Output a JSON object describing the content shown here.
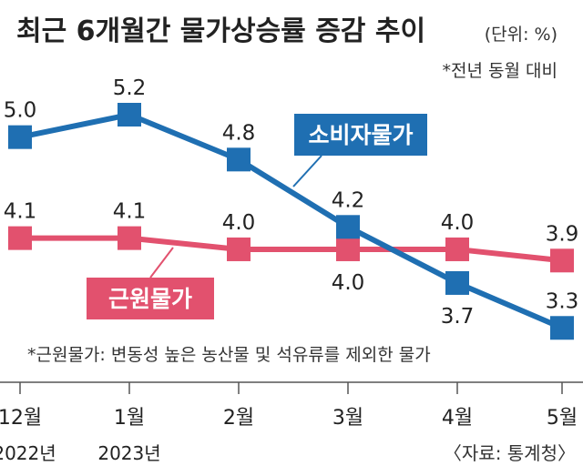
{
  "chart_data": {
    "type": "line",
    "title": "최근 6개월간 물가상승률 증감 추이",
    "unit": "(단위: %)",
    "subtitle": "*전년 동월 대비",
    "categories": [
      "12월",
      "1월",
      "2월",
      "3월",
      "4월",
      "5월"
    ],
    "category_years": [
      "2022년",
      "2023년",
      "",
      "",
      "",
      ""
    ],
    "ylim": [
      3.0,
      5.5
    ],
    "grid": false,
    "series": [
      {
        "name": "소비자물가",
        "values": [
          5.0,
          5.2,
          4.8,
          4.2,
          3.7,
          3.3
        ],
        "labels": [
          "5.0",
          "5.2",
          "4.8",
          "4.2",
          "3.7",
          "3.3"
        ],
        "color": "#1f6fb2"
      },
      {
        "name": "근원물가",
        "values": [
          4.1,
          4.1,
          4.0,
          4.0,
          4.0,
          3.9
        ],
        "labels": [
          "4.1",
          "4.1",
          "4.0",
          "4.0",
          "4.0",
          "3.9"
        ],
        "color": "#e2516e"
      }
    ],
    "footnote": "*근원물가: 변동성 높은 농산물 및 석유류를 제외한 물가",
    "source": "〈자료: 통계청〉"
  }
}
